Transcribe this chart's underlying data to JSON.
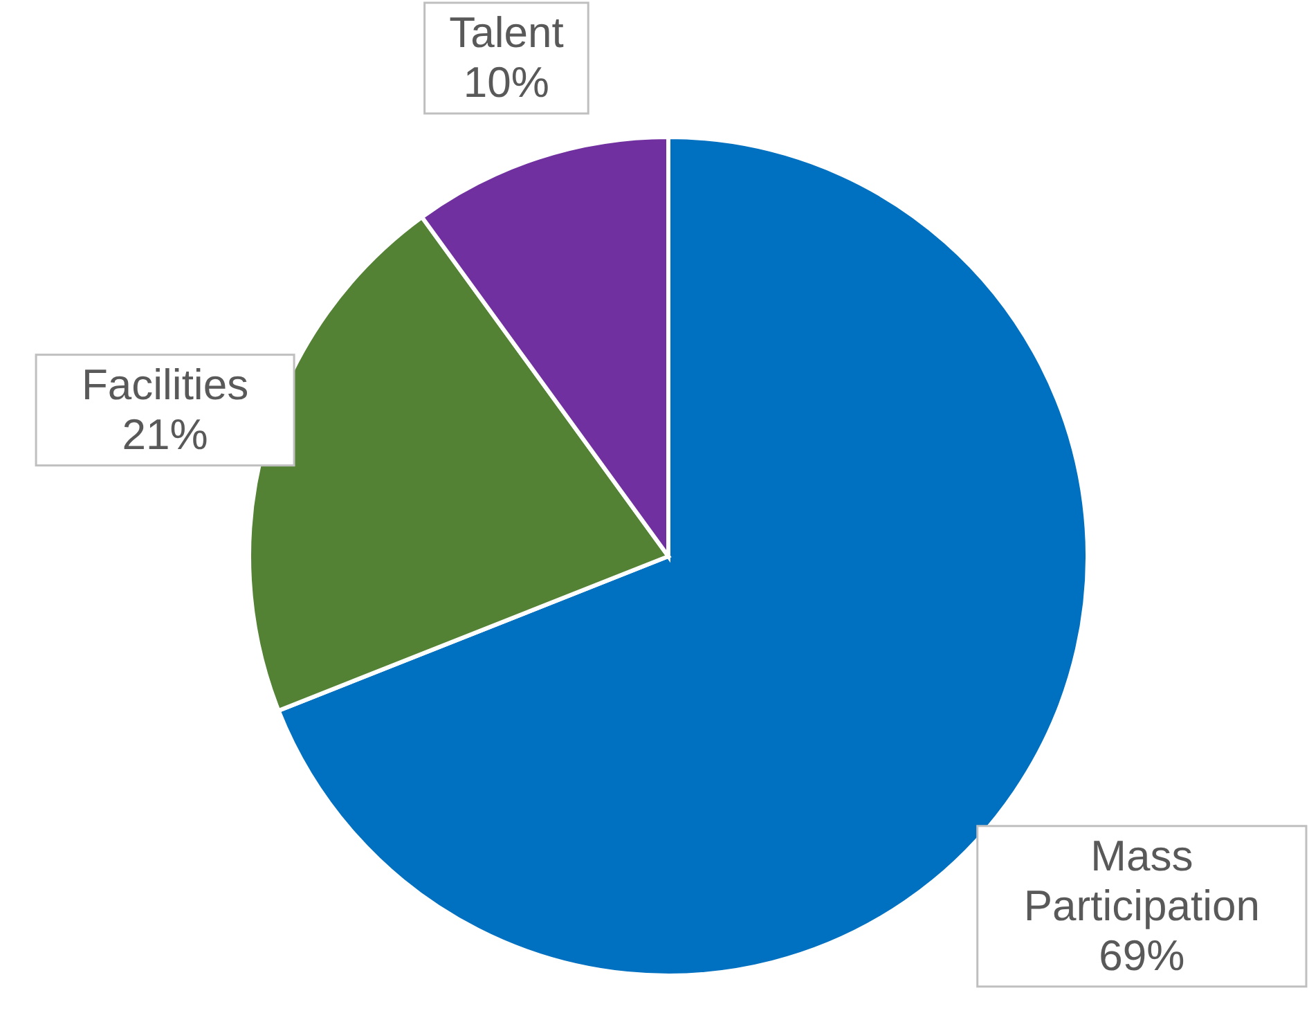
{
  "chart_data": {
    "type": "pie",
    "categories": [
      "Mass Participation",
      "Facilities",
      "Talent"
    ],
    "values": [
      69,
      21,
      10
    ],
    "colors": [
      "#0070c0",
      "#548235",
      "#7030a0"
    ],
    "value_labels": [
      "69%",
      "21%",
      "10%"
    ]
  }
}
